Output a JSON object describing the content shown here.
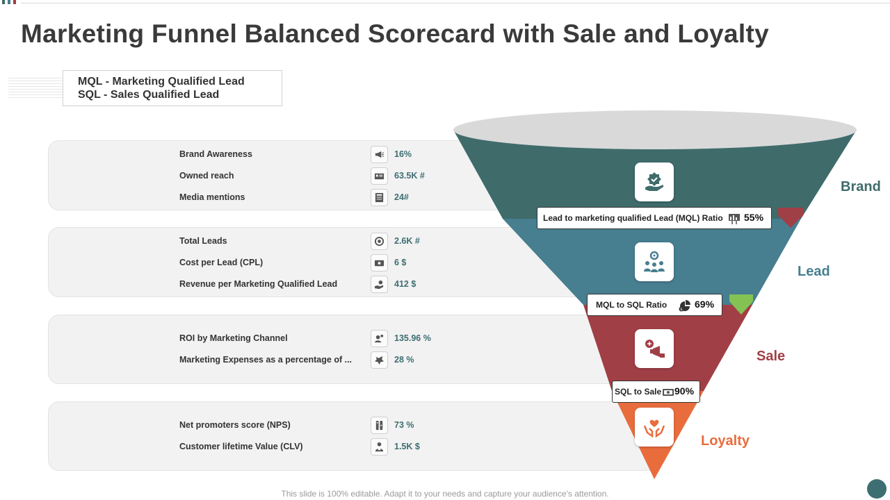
{
  "title": "Marketing Funnel Balanced Scorecard with Sale and Loyalty",
  "legend": {
    "line1": "MQL - Marketing Qualified Lead",
    "line2": "SQL - Sales Qualified Lead"
  },
  "panels": [
    {
      "metrics": [
        {
          "label": "Brand Awareness",
          "value": "16%",
          "icon": "megaphone-icon"
        },
        {
          "label": "Owned reach",
          "value": "63.5K #",
          "icon": "reach-icon"
        },
        {
          "label": "Media mentions",
          "value": "24#",
          "icon": "newspaper-icon"
        }
      ]
    },
    {
      "metrics": [
        {
          "label": "Total Leads",
          "value": "2.6K #",
          "icon": "leads-gear-icon"
        },
        {
          "label": "Cost per Lead (CPL)",
          "value": "6 $",
          "icon": "cash-icon"
        },
        {
          "label": "Revenue per Marketing Qualified  Lead",
          "value": "412 $",
          "icon": "money-hand-icon"
        }
      ]
    },
    {
      "metrics": [
        {
          "label": "ROI by Marketing Channel",
          "value": "135.96 %",
          "icon": "roi-icon"
        },
        {
          "label": "Marketing Expenses as a percentage of ...",
          "value": "28 %",
          "icon": "expense-icon"
        }
      ]
    },
    {
      "metrics": [
        {
          "label": "Net promoters score (NPS)",
          "value": "73 %",
          "icon": "nps-icon"
        },
        {
          "label": "Customer lifetime Value (CLV)",
          "value": "1.5K $",
          "icon": "clv-icon"
        }
      ]
    }
  ],
  "funnel": {
    "stages": [
      {
        "name": "Brand",
        "color": "#3f6b6b",
        "icon": "hand-badge-icon"
      },
      {
        "name": "Lead",
        "color": "#477e90",
        "icon": "team-gear-icon"
      },
      {
        "name": "Sale",
        "color": "#a13f46",
        "icon": "sale-megaphone-icon"
      },
      {
        "name": "Loyalty",
        "color": "#e96c3d",
        "icon": "hands-heart-icon"
      }
    ],
    "ratios": [
      {
        "label": "Lead to marketing qualified Lead (MQL) Ratio",
        "value": "55%",
        "icon": "chart-icon",
        "arrow": "down-red"
      },
      {
        "label": "MQL to SQL Ratio",
        "value": "69%",
        "icon": "pie-icon",
        "arrow": "down-green"
      },
      {
        "label": "SQL to Sale",
        "value": "90%",
        "icon": "cash-icon",
        "arrow": "none"
      }
    ],
    "arrow_colors": {
      "red": "#a13f46",
      "green": "#84c353"
    },
    "rim_color": "#d9d9d9"
  },
  "footer": "This slide is 100% editable. Adapt it to your needs and capture your audience's attention.",
  "colors": {
    "accent_teal": "#3d6e72",
    "corner_dot": "#3d6e72",
    "top_dots": [
      "#3f6b6b",
      "#477e90",
      "#a13f46"
    ]
  }
}
